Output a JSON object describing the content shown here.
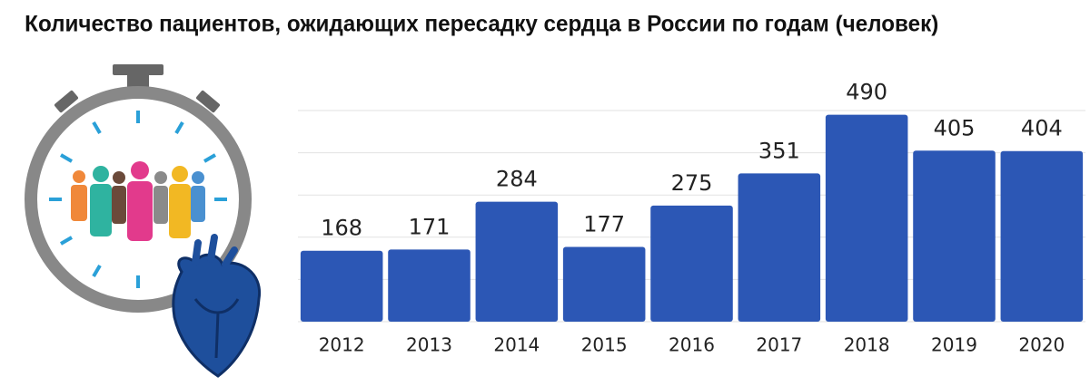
{
  "chart_data": {
    "type": "bar",
    "title": "Количество пациентов, ожидающих пересадку сердца в России по годам (человек)",
    "categories": [
      "2012",
      "2013",
      "2014",
      "2015",
      "2016",
      "2017",
      "2018",
      "2019",
      "2020"
    ],
    "values": [
      168,
      171,
      284,
      177,
      275,
      351,
      490,
      405,
      404
    ],
    "color": "#2c57b5",
    "ylim": [
      0,
      500
    ],
    "yticks": [
      0,
      100,
      200,
      300,
      400,
      500
    ],
    "grid": true
  }
}
